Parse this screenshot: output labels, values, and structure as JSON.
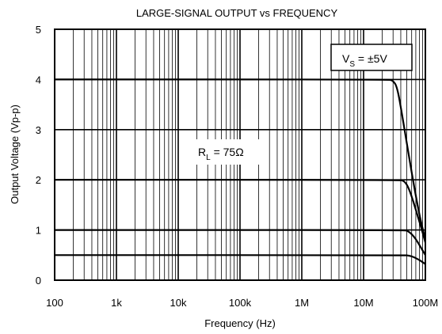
{
  "chart_data": {
    "type": "line",
    "title": "LARGE-SIGNAL OUTPUT vs FREQUENCY",
    "xlabel": "Frequency (Hz)",
    "ylabel": "Output Voltage (Vp-p)",
    "x_scale": "log",
    "xlim": [
      100,
      100000000
    ],
    "ylim": [
      0,
      5
    ],
    "grid": true,
    "x_ticks": [
      {
        "value": 100,
        "label": "100"
      },
      {
        "value": 1000,
        "label": "1k"
      },
      {
        "value": 10000,
        "label": "10k"
      },
      {
        "value": 100000,
        "label": "100k"
      },
      {
        "value": 1000000,
        "label": "1M"
      },
      {
        "value": 10000000,
        "label": "10M"
      },
      {
        "value": 100000000,
        "label": "100M"
      }
    ],
    "y_ticks": [
      {
        "value": 0,
        "label": "0"
      },
      {
        "value": 1,
        "label": "1"
      },
      {
        "value": 2,
        "label": "2"
      },
      {
        "value": 3,
        "label": "3"
      },
      {
        "value": 4,
        "label": "4"
      },
      {
        "value": 5,
        "label": "5"
      }
    ],
    "series": [
      {
        "points": [
          [
            100,
            4.0
          ],
          [
            25000000,
            4.0
          ],
          [
            30000000,
            3.98
          ],
          [
            35000000,
            3.85
          ],
          [
            42000000,
            3.3
          ],
          [
            52000000,
            2.6
          ],
          [
            65000000,
            1.9
          ],
          [
            80000000,
            1.3
          ],
          [
            100000000,
            0.8
          ]
        ]
      },
      {
        "points": [
          [
            100,
            2.0
          ],
          [
            38000000,
            2.0
          ],
          [
            45000000,
            1.98
          ],
          [
            52000000,
            1.88
          ],
          [
            62000000,
            1.62
          ],
          [
            75000000,
            1.28
          ],
          [
            88000000,
            1.0
          ],
          [
            100000000,
            0.75
          ]
        ]
      },
      {
        "points": [
          [
            100,
            1.0
          ],
          [
            45000000,
            1.0
          ],
          [
            52000000,
            0.98
          ],
          [
            60000000,
            0.92
          ],
          [
            70000000,
            0.82
          ],
          [
            82000000,
            0.68
          ],
          [
            100000000,
            0.5
          ]
        ]
      },
      {
        "points": [
          [
            100,
            0.5
          ],
          [
            45000000,
            0.5
          ],
          [
            55000000,
            0.49
          ],
          [
            65000000,
            0.46
          ],
          [
            78000000,
            0.41
          ],
          [
            90000000,
            0.36
          ],
          [
            100000000,
            0.32
          ]
        ]
      }
    ],
    "annotations": {
      "vs": {
        "main": "V",
        "sub": "S",
        "rest": " = ±5V"
      },
      "rl": {
        "main": "R",
        "sub": "L",
        "rest": " = 75Ω"
      }
    }
  }
}
